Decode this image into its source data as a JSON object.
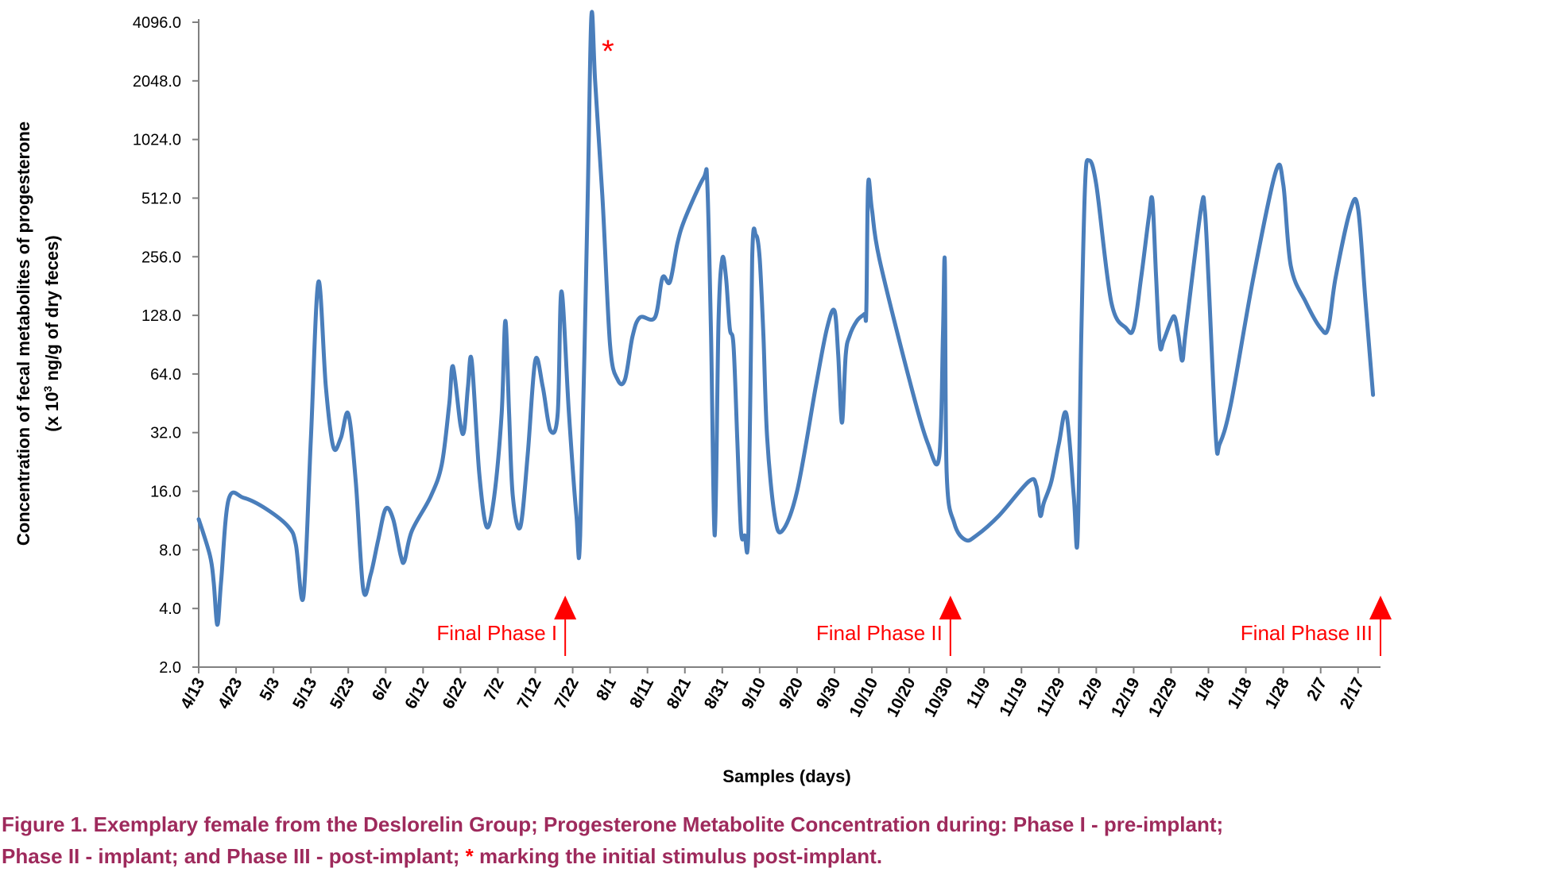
{
  "chart_data": {
    "type": "line",
    "scale": "log2",
    "title": "",
    "xlabel": "Samples (days)",
    "ylabel_line1": "Concentration of fecal metabolites of progesterone",
    "ylabel_line2_pre": "(x 10",
    "ylabel_line2_sup": "3",
    "ylabel_line2_post": " ng/g of dry feces)",
    "ylim": [
      2.0,
      4096.0
    ],
    "yticks": [
      "2.0",
      "4.0",
      "8.0",
      "16.0",
      "32.0",
      "64.0",
      "128.0",
      "256.0",
      "512.0",
      "1024.0",
      "2048.0",
      "4096.0"
    ],
    "xlim": [
      0,
      316
    ],
    "xtick_days": [
      0,
      10,
      20,
      30,
      40,
      50,
      60,
      70,
      80,
      90,
      100,
      110,
      120,
      130,
      140,
      150,
      160,
      170,
      180,
      190,
      200,
      210,
      220,
      230,
      240,
      250,
      260,
      270,
      280,
      290,
      300,
      310
    ],
    "xtick_labels": [
      "4/13",
      "4/23",
      "5/3",
      "5/13",
      "5/23",
      "6/2",
      "6/12",
      "6/22",
      "7/2",
      "7/12",
      "7/22",
      "8/1",
      "8/11",
      "8/21",
      "8/31",
      "9/10",
      "9/20",
      "9/30",
      "10/10",
      "10/20",
      "10/30",
      "11/9",
      "11/19",
      "11/29",
      "12/9",
      "12/19",
      "12/29",
      "1/8",
      "1/18",
      "1/28",
      "2/7",
      "2/17"
    ],
    "series": [
      {
        "name": "Progesterone metabolites",
        "color": "#4a7ebb",
        "points": [
          [
            0,
            11.5
          ],
          [
            3,
            7.5
          ],
          [
            4,
            5.5
          ],
          [
            5,
            3.3
          ],
          [
            6,
            5.5
          ],
          [
            8,
            14.5
          ],
          [
            12,
            14.8
          ],
          [
            18,
            13.0
          ],
          [
            24,
            10.5
          ],
          [
            26,
            8.5
          ],
          [
            28,
            4.6
          ],
          [
            30,
            30
          ],
          [
            32,
            190
          ],
          [
            34,
            55
          ],
          [
            36,
            27
          ],
          [
            38,
            30
          ],
          [
            40,
            40
          ],
          [
            42,
            18
          ],
          [
            44,
            5.0
          ],
          [
            46,
            6.0
          ],
          [
            48,
            9.0
          ],
          [
            50,
            13.0
          ],
          [
            52,
            11.5
          ],
          [
            54,
            7.5
          ],
          [
            55,
            7.0
          ],
          [
            57,
            10.0
          ],
          [
            62,
            15.0
          ],
          [
            65,
            22
          ],
          [
            67,
            45
          ],
          [
            68,
            70
          ],
          [
            70,
            35
          ],
          [
            71,
            33
          ],
          [
            72,
            55
          ],
          [
            73,
            75
          ],
          [
            75,
            20
          ],
          [
            77,
            10.5
          ],
          [
            79,
            15.0
          ],
          [
            81,
            40
          ],
          [
            82,
            120
          ],
          [
            83,
            40
          ],
          [
            84,
            15.0
          ],
          [
            86,
            10.5
          ],
          [
            88,
            25
          ],
          [
            90,
            75
          ],
          [
            92,
            55
          ],
          [
            94,
            33
          ],
          [
            96,
            40
          ],
          [
            97,
            170
          ],
          [
            99,
            40
          ],
          [
            101,
            12.0
          ],
          [
            102,
            9.5
          ],
          [
            104,
            500
          ],
          [
            105,
            4400
          ],
          [
            106,
            2048
          ],
          [
            108,
            500
          ],
          [
            110,
            90
          ],
          [
            112,
            60
          ],
          [
            114,
            60
          ],
          [
            116,
            100
          ],
          [
            118,
            125
          ],
          [
            122,
            125
          ],
          [
            124,
            200
          ],
          [
            126,
            190
          ],
          [
            128,
            300
          ],
          [
            130,
            400
          ],
          [
            135,
            650
          ],
          [
            136,
            600
          ],
          [
            137,
            100
          ],
          [
            138,
            9.5
          ],
          [
            139,
            120
          ],
          [
            140,
            250
          ],
          [
            141,
            200
          ],
          [
            142,
            110
          ],
          [
            143,
            90
          ],
          [
            144,
            30
          ],
          [
            145,
            10.0
          ],
          [
            146,
            9.5
          ],
          [
            147,
            10.0
          ],
          [
            148,
            250
          ],
          [
            149,
            330
          ],
          [
            150,
            250
          ],
          [
            151,
            100
          ],
          [
            152,
            30
          ],
          [
            154,
            12.0
          ],
          [
            156,
            10.0
          ],
          [
            160,
            16.0
          ],
          [
            165,
            55
          ],
          [
            168,
            110
          ],
          [
            170,
            135
          ],
          [
            171,
            80
          ],
          [
            172,
            36
          ],
          [
            173,
            80
          ],
          [
            174,
            100
          ],
          [
            176,
            120
          ],
          [
            178,
            130
          ],
          [
            178.5,
            135
          ],
          [
            179,
            600
          ],
          [
            180,
            450
          ],
          [
            182,
            250
          ],
          [
            190,
            60
          ],
          [
            195,
            28
          ],
          [
            198,
            24
          ],
          [
            199,
            100
          ],
          [
            199.5,
            240
          ],
          [
            200,
            20
          ],
          [
            202,
            11.0
          ],
          [
            205,
            9.0
          ],
          [
            208,
            9.5
          ],
          [
            214,
            12.0
          ],
          [
            222,
            18.0
          ],
          [
            224,
            17.0
          ],
          [
            225,
            12.0
          ],
          [
            226,
            14.0
          ],
          [
            228,
            18.0
          ],
          [
            230,
            28
          ],
          [
            232,
            40
          ],
          [
            234,
            15.0
          ],
          [
            235,
            9.0
          ],
          [
            236,
            100
          ],
          [
            237,
            600
          ],
          [
            238,
            800
          ],
          [
            240,
            600
          ],
          [
            244,
            150
          ],
          [
            248,
            110
          ],
          [
            250,
            110
          ],
          [
            252,
            200
          ],
          [
            254,
            400
          ],
          [
            255,
            500
          ],
          [
            256,
            200
          ],
          [
            257,
            90
          ],
          [
            258,
            95
          ],
          [
            260,
            120
          ],
          [
            261,
            125
          ],
          [
            262,
            100
          ],
          [
            263,
            75
          ],
          [
            264,
            110
          ],
          [
            268,
            450
          ],
          [
            269,
            450
          ],
          [
            270,
            200
          ],
          [
            272,
            30
          ],
          [
            273,
            28
          ],
          [
            276,
            45
          ],
          [
            282,
            200
          ],
          [
            288,
            700
          ],
          [
            290,
            600
          ],
          [
            292,
            230
          ],
          [
            296,
            150
          ],
          [
            300,
            110
          ],
          [
            302,
            110
          ],
          [
            304,
            200
          ],
          [
            308,
            450
          ],
          [
            310,
            450
          ],
          [
            312,
            150
          ],
          [
            314,
            50
          ]
        ]
      }
    ],
    "annotations": [
      {
        "label": "Final Phase I",
        "day": 98
      },
      {
        "label": "Final Phase II",
        "day": 201
      },
      {
        "label": "Final Phase III",
        "day": 316
      }
    ],
    "marker": {
      "symbol": "*",
      "day": 106.5,
      "color": "#ff0000"
    }
  },
  "caption": {
    "line1": "Figure 1. Exemplary female from the Deslorelin Group; Progesterone Metabolite Concentration during: Phase I - pre-implant;",
    "line2_pre": "Phase II - implant; and Phase III - post-implant; ",
    "line2_star": "*",
    "line2_post": " marking the initial stimulus post-implant."
  },
  "colors": {
    "line": "#4a7ebb",
    "annotation": "#ff0000",
    "caption": "#9e2a5c",
    "caption_star": "#ff0000",
    "axis": "#808080"
  }
}
